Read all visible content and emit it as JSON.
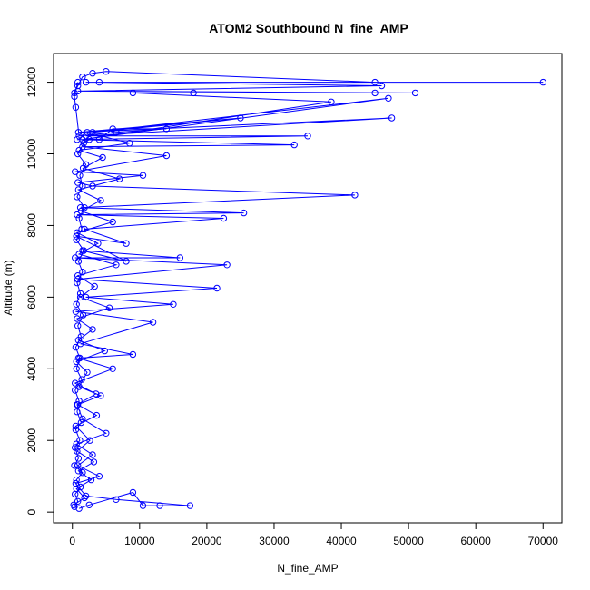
{
  "chart_data": {
    "type": "line",
    "title": "ATOM2 Southbound N_fine_AMP",
    "xlabel": "N_fine_AMP",
    "ylabel": "Altitude (m)",
    "xlim": [
      -2800,
      72800
    ],
    "ylim": [
      -300,
      12800
    ],
    "x_ticks": [
      0,
      10000,
      20000,
      30000,
      40000,
      50000,
      60000,
      70000
    ],
    "y_ticks": [
      0,
      2000,
      4000,
      6000,
      8000,
      10000,
      12000
    ],
    "x_tick_labels": [
      "0",
      "10000",
      "20000",
      "30000",
      "40000",
      "50000",
      "60000",
      "70000"
    ],
    "y_tick_labels": [
      "0",
      "2000",
      "4000",
      "6000",
      "8000",
      "10000",
      "12000"
    ],
    "grid": false,
    "legend": "none",
    "marker": "open-circle",
    "series_color": "#0000ff",
    "series": [
      {
        "points": [
          [
            1000,
            100
          ],
          [
            2500,
            200
          ],
          [
            9000,
            550
          ],
          [
            10500,
            180
          ],
          [
            13000,
            180
          ],
          [
            17500,
            180
          ],
          [
            6500,
            350
          ],
          [
            2000,
            450
          ],
          [
            500,
            800
          ],
          [
            4000,
            1000
          ],
          [
            800,
            1300
          ],
          [
            3000,
            1600
          ],
          [
            600,
            1900
          ],
          [
            5000,
            2200
          ],
          [
            1500,
            2600
          ],
          [
            700,
            3000
          ],
          [
            3500,
            3300
          ],
          [
            400,
            3600
          ],
          [
            6000,
            4000
          ],
          [
            900,
            4300
          ],
          [
            9000,
            4400
          ],
          [
            1200,
            4700
          ],
          [
            12000,
            5300
          ],
          [
            500,
            5600
          ],
          [
            15000,
            5800
          ],
          [
            2000,
            6000
          ],
          [
            21500,
            6250
          ],
          [
            800,
            6500
          ],
          [
            23000,
            6900
          ],
          [
            400,
            7100
          ],
          [
            16000,
            7100
          ],
          [
            1500,
            7300
          ],
          [
            8000,
            7000
          ],
          [
            600,
            7700
          ],
          [
            8000,
            7500
          ],
          [
            1800,
            7900
          ],
          [
            22500,
            8200
          ],
          [
            700,
            8300
          ],
          [
            25500,
            8350
          ],
          [
            1200,
            8500
          ],
          [
            42000,
            8850
          ],
          [
            3000,
            9100
          ],
          [
            800,
            9200
          ],
          [
            10500,
            9400
          ],
          [
            400,
            9500
          ],
          [
            14000,
            9950
          ],
          [
            1500,
            10200
          ],
          [
            33000,
            10250
          ],
          [
            700,
            10400
          ],
          [
            35000,
            10500
          ],
          [
            2000,
            10500
          ],
          [
            47500,
            11000
          ],
          [
            900,
            10600
          ],
          [
            25000,
            11000
          ],
          [
            3000,
            10600
          ],
          [
            47000,
            11550
          ],
          [
            1500,
            10400
          ],
          [
            38500,
            11450
          ],
          [
            9000,
            11700
          ],
          [
            45000,
            11700
          ],
          [
            18000,
            11700
          ],
          [
            51000,
            11700
          ],
          [
            800,
            11750
          ],
          [
            46000,
            11900
          ],
          [
            4000,
            12000
          ],
          [
            70000,
            12000
          ],
          [
            2000,
            12000
          ],
          [
            45000,
            12000
          ],
          [
            5000,
            12300
          ],
          [
            3000,
            12250
          ],
          [
            1500,
            12150
          ],
          [
            800,
            11900
          ],
          [
            300,
            11700
          ]
        ]
      },
      {
        "points": [
          [
            300,
            150
          ],
          [
            800,
            300
          ],
          [
            400,
            500
          ],
          [
            1200,
            700
          ],
          [
            600,
            900
          ],
          [
            1500,
            1100
          ],
          [
            300,
            1300
          ],
          [
            900,
            1500
          ],
          [
            400,
            1800
          ],
          [
            1100,
            2000
          ],
          [
            500,
            2300
          ],
          [
            1300,
            2500
          ],
          [
            700,
            2800
          ],
          [
            1000,
            3100
          ],
          [
            400,
            3400
          ],
          [
            1400,
            3700
          ],
          [
            600,
            4000
          ],
          [
            1100,
            4300
          ],
          [
            500,
            4600
          ],
          [
            1300,
            4900
          ],
          [
            800,
            5200
          ],
          [
            1600,
            5500
          ],
          [
            600,
            5800
          ],
          [
            1200,
            6100
          ],
          [
            700,
            6400
          ],
          [
            1500,
            6700
          ],
          [
            900,
            7000
          ],
          [
            1700,
            7300
          ],
          [
            600,
            7600
          ],
          [
            1400,
            7900
          ],
          [
            1000,
            8200
          ],
          [
            1800,
            8500
          ],
          [
            700,
            8800
          ],
          [
            1500,
            9100
          ],
          [
            1100,
            9400
          ],
          [
            2000,
            9700
          ],
          [
            800,
            10000
          ],
          [
            1700,
            10300
          ],
          [
            2500,
            10400
          ],
          [
            4000,
            10400
          ],
          [
            6000,
            10700
          ],
          [
            14000,
            10700
          ],
          [
            6500,
            10600
          ],
          [
            1000,
            10500
          ],
          [
            500,
            11300
          ],
          [
            300,
            11600
          ],
          [
            800,
            12000
          ]
        ]
      },
      {
        "points": [
          [
            200,
            200
          ],
          [
            1800,
            400
          ],
          [
            600,
            650
          ],
          [
            2800,
            900
          ],
          [
            900,
            1150
          ],
          [
            3200,
            1400
          ],
          [
            700,
            1700
          ],
          [
            2600,
            2000
          ],
          [
            500,
            2400
          ],
          [
            3600,
            2700
          ],
          [
            800,
            3000
          ],
          [
            4200,
            3250
          ],
          [
            1000,
            3500
          ],
          [
            2200,
            3900
          ],
          [
            600,
            4200
          ],
          [
            4800,
            4500
          ],
          [
            900,
            4800
          ],
          [
            3000,
            5100
          ],
          [
            700,
            5400
          ],
          [
            5500,
            5700
          ],
          [
            1200,
            6000
          ],
          [
            3300,
            6300
          ],
          [
            800,
            6600
          ],
          [
            6500,
            6900
          ],
          [
            1000,
            7200
          ],
          [
            3800,
            7500
          ],
          [
            700,
            7800
          ],
          [
            6000,
            8100
          ],
          [
            1300,
            8400
          ],
          [
            4200,
            8700
          ],
          [
            900,
            9000
          ],
          [
            7000,
            9300
          ],
          [
            1600,
            9600
          ],
          [
            4500,
            9900
          ],
          [
            1000,
            10100
          ],
          [
            8500,
            10300
          ],
          [
            2200,
            10600
          ]
        ]
      }
    ]
  }
}
